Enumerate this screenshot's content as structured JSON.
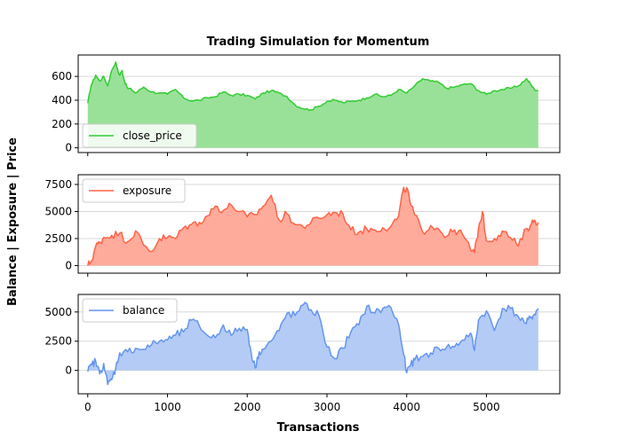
{
  "chart_data": {
    "type": "area",
    "title": "Trading Simulation for Momentum",
    "xlabel": "Transactions",
    "ylabel": "Balance | Exposure | Price",
    "xlim": [
      -120,
      5920
    ],
    "xticks": [
      0,
      1000,
      2000,
      3000,
      4000,
      5000
    ],
    "grid": "horizontal",
    "legend_position": "upper-left",
    "panels": [
      {
        "name": "close_price",
        "color": "#33cc33",
        "fill": "#99e199",
        "ylim": [
          -40,
          780
        ],
        "yticks": [
          0,
          200,
          400,
          600
        ],
        "x": [
          0,
          40,
          100,
          150,
          200,
          250,
          300,
          350,
          380,
          400,
          430,
          460,
          500,
          550,
          600,
          700,
          800,
          900,
          1000,
          1100,
          1200,
          1300,
          1400,
          1500,
          1600,
          1700,
          1800,
          1900,
          2000,
          2100,
          2200,
          2300,
          2400,
          2500,
          2600,
          2700,
          2800,
          2900,
          3000,
          3100,
          3200,
          3300,
          3400,
          3500,
          3600,
          3700,
          3800,
          3900,
          4000,
          4100,
          4200,
          4300,
          4400,
          4500,
          4600,
          4700,
          4800,
          4900,
          5000,
          5100,
          5200,
          5300,
          5400,
          5500,
          5550,
          5600,
          5650
        ],
        "values": [
          375,
          520,
          610,
          560,
          600,
          520,
          650,
          720,
          640,
          610,
          650,
          560,
          500,
          490,
          460,
          510,
          470,
          460,
          450,
          490,
          420,
          395,
          400,
          420,
          430,
          470,
          440,
          450,
          440,
          410,
          460,
          480,
          460,
          430,
          360,
          330,
          320,
          350,
          390,
          400,
          380,
          390,
          400,
          420,
          450,
          430,
          440,
          490,
          460,
          520,
          580,
          560,
          550,
          500,
          510,
          530,
          540,
          480,
          450,
          480,
          490,
          500,
          520,
          580,
          540,
          490,
          480
        ]
      },
      {
        "name": "exposure",
        "color": "#ff6347",
        "fill": "#ffab9b",
        "ylim": [
          -700,
          8400
        ],
        "yticks": [
          0,
          2500,
          5000,
          7500
        ],
        "x": [
          0,
          50,
          100,
          150,
          200,
          300,
          400,
          500,
          600,
          700,
          800,
          900,
          1000,
          1100,
          1200,
          1300,
          1400,
          1500,
          1600,
          1700,
          1800,
          1900,
          2000,
          2100,
          2200,
          2300,
          2400,
          2500,
          2600,
          2700,
          2800,
          2900,
          3000,
          3100,
          3200,
          3300,
          3400,
          3500,
          3600,
          3700,
          3800,
          3900,
          3950,
          4000,
          4050,
          4100,
          4200,
          4300,
          4400,
          4500,
          4600,
          4700,
          4800,
          4850,
          4900,
          4950,
          5000,
          5100,
          5200,
          5300,
          5400,
          5500,
          5550,
          5600,
          5650
        ],
        "values": [
          0,
          500,
          1800,
          2100,
          2600,
          2800,
          3000,
          2200,
          3200,
          1900,
          1300,
          2500,
          2600,
          2500,
          3500,
          3800,
          4000,
          4600,
          5500,
          5100,
          5600,
          5000,
          4500,
          4700,
          5500,
          6500,
          4200,
          4800,
          3800,
          3600,
          4000,
          4400,
          4700,
          4900,
          4800,
          3300,
          3100,
          3400,
          3300,
          3500,
          3600,
          4600,
          6800,
          7200,
          5600,
          4700,
          3100,
          3700,
          3400,
          2700,
          3300,
          2900,
          1500,
          1200,
          3400,
          5000,
          2300,
          2500,
          3200,
          2600,
          1800,
          3400,
          3700,
          4200,
          4000
        ]
      },
      {
        "name": "balance",
        "color": "#6495ed",
        "fill": "#b4cbf6",
        "ylim": [
          -2000,
          6500
        ],
        "yticks": [
          0,
          2500,
          5000
        ],
        "x": [
          0,
          50,
          100,
          150,
          200,
          250,
          300,
          350,
          400,
          500,
          600,
          700,
          800,
          900,
          1000,
          1100,
          1200,
          1300,
          1400,
          1500,
          1600,
          1700,
          1800,
          1900,
          2000,
          2050,
          2100,
          2150,
          2200,
          2300,
          2400,
          2500,
          2600,
          2700,
          2800,
          2900,
          3000,
          3100,
          3200,
          3300,
          3400,
          3500,
          3600,
          3700,
          3800,
          3900,
          3950,
          4000,
          4050,
          4100,
          4200,
          4300,
          4400,
          4500,
          4600,
          4700,
          4800,
          4850,
          4900,
          5000,
          5100,
          5200,
          5300,
          5400,
          5500,
          5550,
          5600,
          5650
        ],
        "values": [
          -100,
          500,
          800,
          -300,
          600,
          -1200,
          -800,
          200,
          1500,
          1600,
          1900,
          1800,
          2200,
          2500,
          2600,
          3000,
          3300,
          4300,
          3800,
          3000,
          2800,
          3900,
          3000,
          3600,
          3500,
          1500,
          200,
          1600,
          1800,
          2500,
          3400,
          4900,
          4700,
          5600,
          5200,
          4700,
          2000,
          1000,
          1900,
          3300,
          3900,
          5500,
          4900,
          5300,
          5400,
          3900,
          1800,
          -200,
          500,
          900,
          1200,
          1500,
          1900,
          2000,
          2000,
          2600,
          3200,
          1700,
          4300,
          5100,
          3400,
          5300,
          5300,
          4600,
          4000,
          4500,
          4800,
          5300
        ]
      }
    ]
  }
}
